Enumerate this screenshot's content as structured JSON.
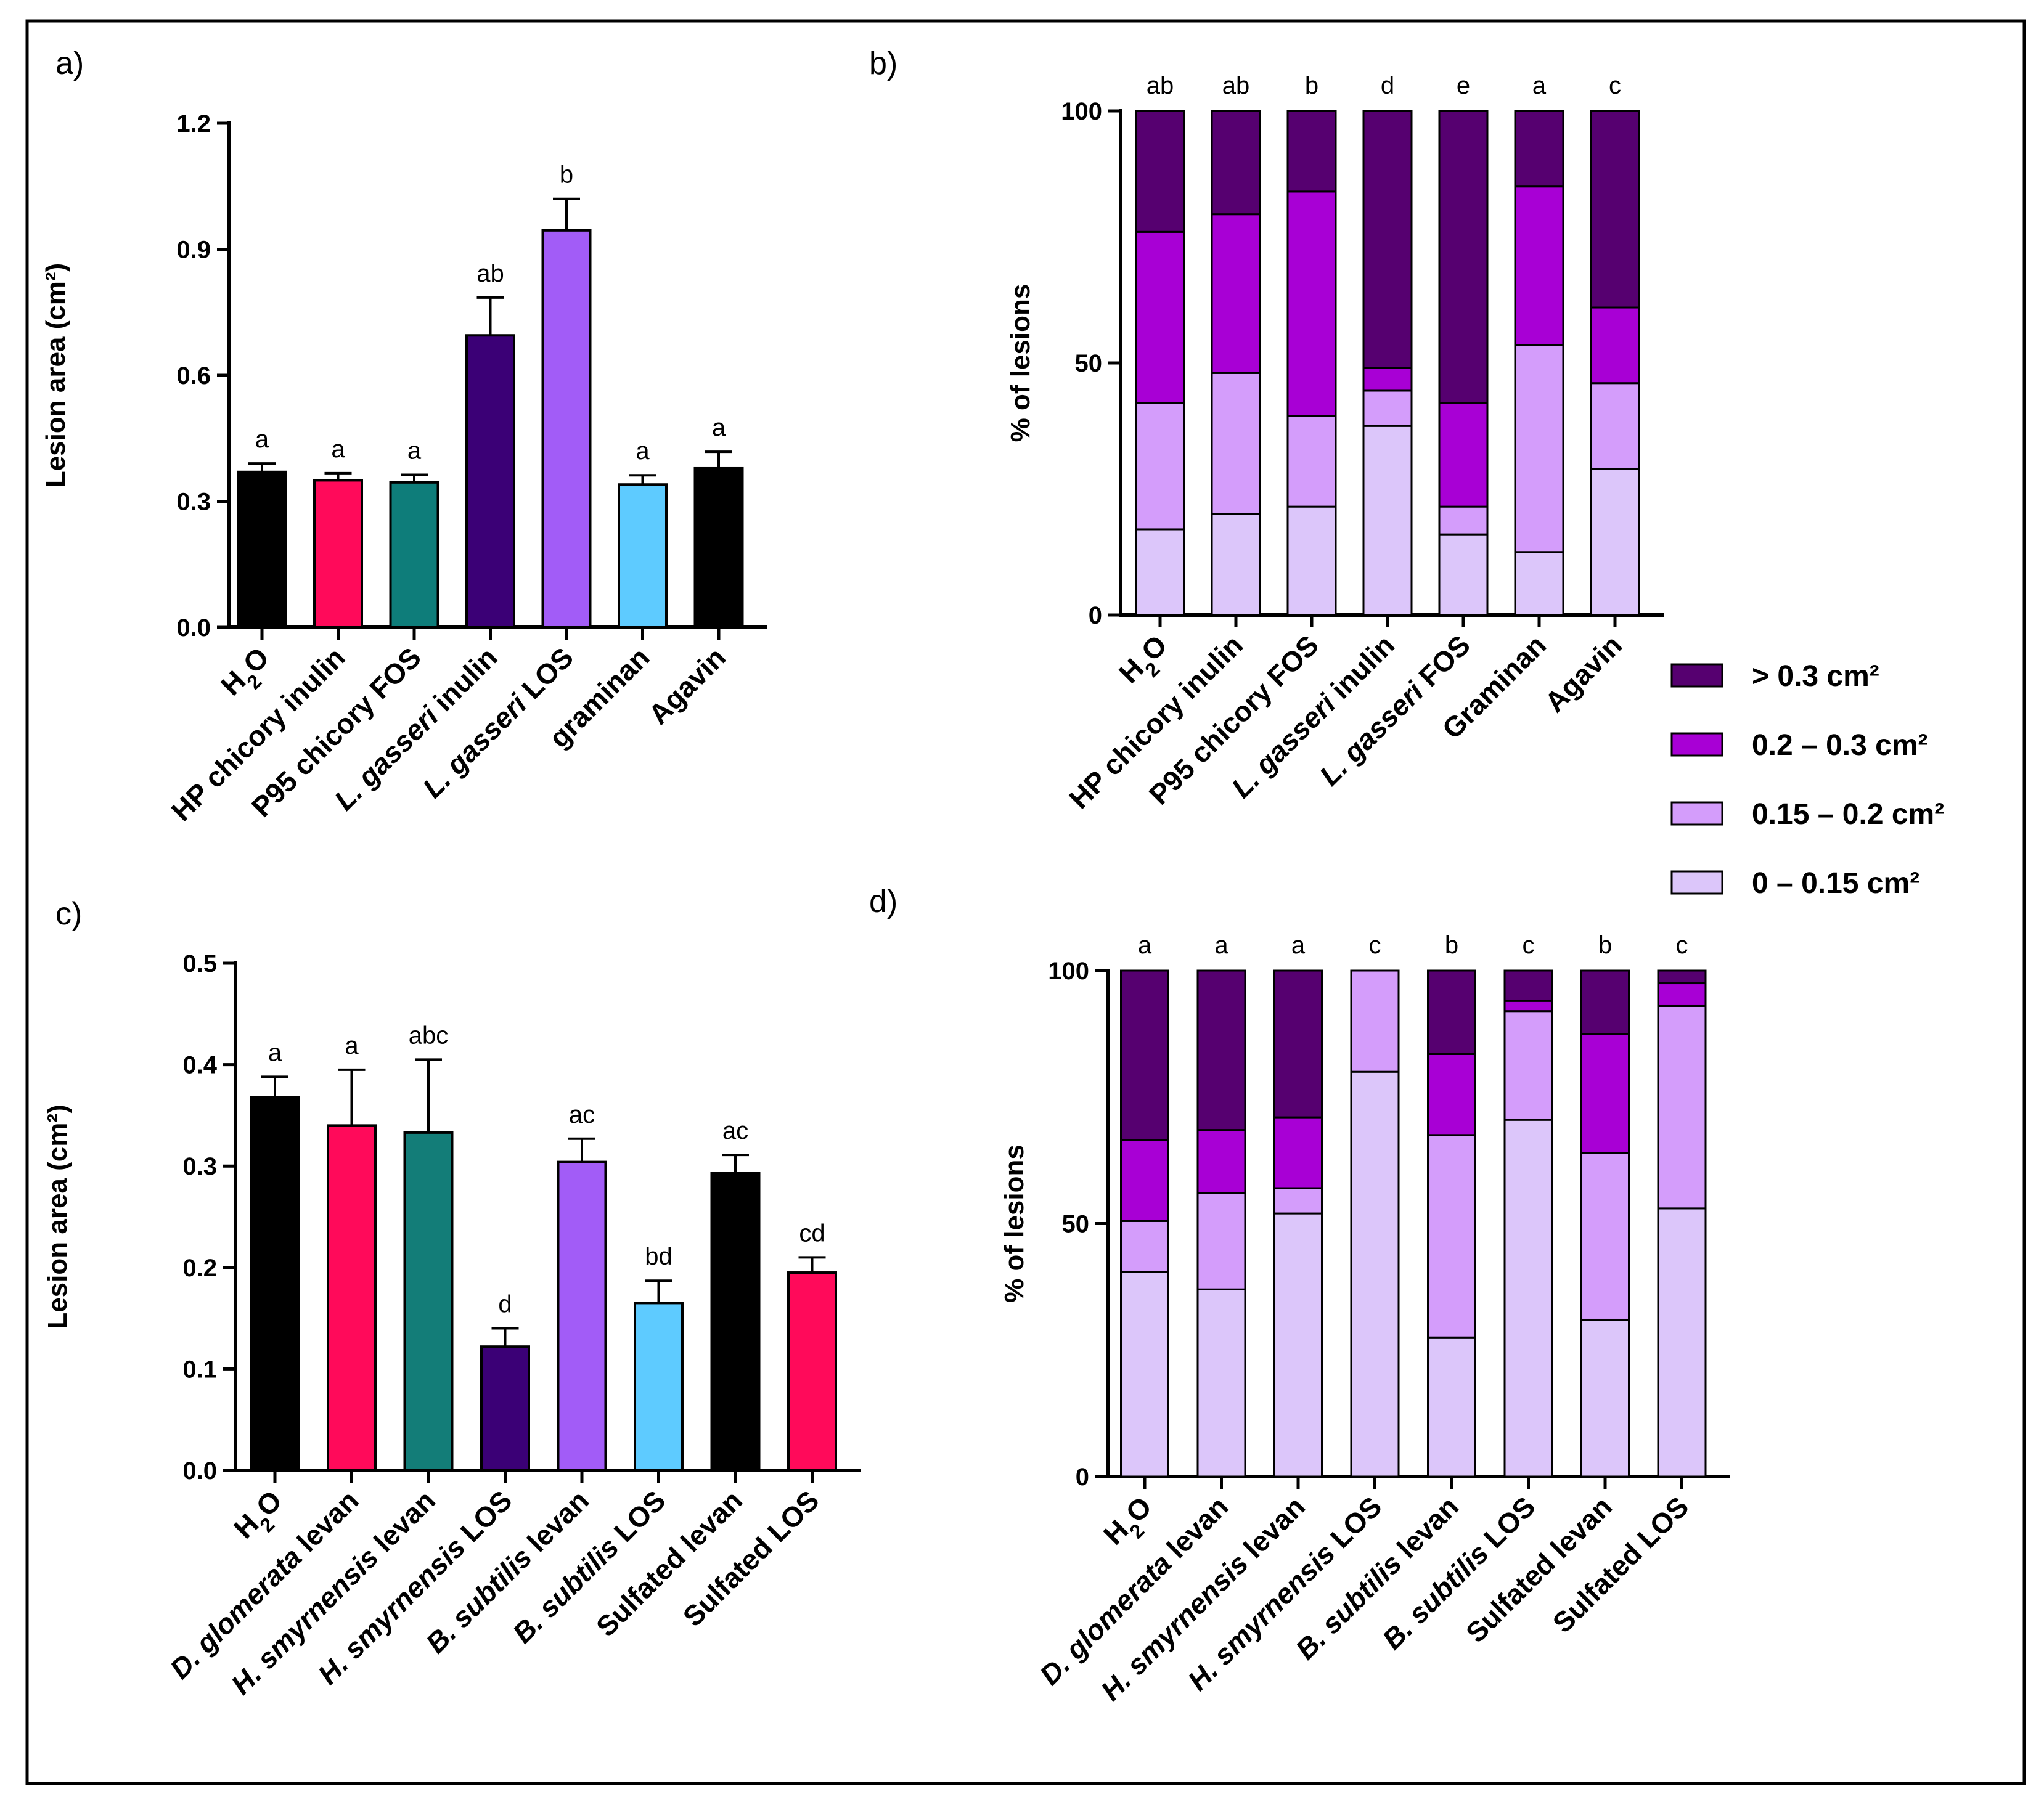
{
  "chart_data": [
    {
      "id": "a",
      "panel_label": "a)",
      "type": "bar",
      "ylabel": "Lesion area (cm²)",
      "ylim": [
        0,
        1.2
      ],
      "yticks": [
        "0.0",
        "0.3",
        "0.6",
        "0.9",
        "1.2"
      ],
      "categories": [
        {
          "parts": [
            {
              "t": "H"
            },
            {
              "t": "2",
              "sub": true
            },
            {
              "t": "O"
            }
          ]
        },
        {
          "parts": [
            {
              "t": "HP chicory inulin"
            }
          ]
        },
        {
          "parts": [
            {
              "t": "P95 chicory FOS"
            }
          ]
        },
        {
          "parts": [
            {
              "t": "L. gasseri",
              "i": true
            },
            {
              "t": " inulin"
            }
          ]
        },
        {
          "parts": [
            {
              "t": "L. gasseri",
              "i": true
            },
            {
              "t": " LOS"
            }
          ]
        },
        {
          "parts": [
            {
              "t": "graminan"
            }
          ]
        },
        {
          "parts": [
            {
              "t": "Agavin"
            }
          ]
        }
      ],
      "values": [
        0.37,
        0.35,
        0.345,
        0.695,
        0.945,
        0.34,
        0.38
      ],
      "errors": [
        0.02,
        0.017,
        0.018,
        0.09,
        0.075,
        0.022,
        0.038
      ],
      "colors": [
        "#000000",
        "#ff0a5a",
        "#0e7d7a",
        "#3b0076",
        "#a25cf7",
        "#5ecbff",
        "#000000"
      ],
      "letters": [
        "a",
        "a",
        "a",
        "ab",
        "b",
        "a",
        "a"
      ]
    },
    {
      "id": "b",
      "panel_label": "b)",
      "type": "stacked_bar",
      "ylabel": "% of lesions",
      "ylim": [
        0,
        100
      ],
      "yticks": [
        "0",
        "50",
        "100"
      ],
      "categories": [
        {
          "parts": [
            {
              "t": "H"
            },
            {
              "t": "2",
              "sub": true
            },
            {
              "t": "O"
            }
          ]
        },
        {
          "parts": [
            {
              "t": "HP chicory inulin"
            }
          ]
        },
        {
          "parts": [
            {
              "t": "P95 chicory FOS"
            }
          ]
        },
        {
          "parts": [
            {
              "t": "L. gasseri",
              "i": true
            },
            {
              "t": " inulin"
            }
          ]
        },
        {
          "parts": [
            {
              "t": "L. gasseri",
              "i": true
            },
            {
              "t": " FOS"
            }
          ]
        },
        {
          "parts": [
            {
              "t": "Graminan"
            }
          ]
        },
        {
          "parts": [
            {
              "t": "Agavin"
            }
          ]
        }
      ],
      "series": [
        {
          "name": "0 – 0.15 cm²",
          "color": "#dcc6fa",
          "values": [
            17,
            20,
            21.5,
            37.5,
            16,
            12.5,
            29
          ]
        },
        {
          "name": "0.15 – 0.2 cm²",
          "color": "#d49dfb",
          "values": [
            25,
            28,
            18,
            7,
            5.5,
            41,
            17
          ]
        },
        {
          "name": "0.2 – 0.3 cm²",
          "color": "#a800d5",
          "values": [
            34,
            31.5,
            44.5,
            4.5,
            20.5,
            31.5,
            15
          ]
        },
        {
          "name": "> 0.3 cm²",
          "color": "#560070",
          "values": [
            24,
            20.5,
            16,
            51,
            58,
            15,
            39
          ]
        }
      ],
      "letters": [
        "ab",
        "ab",
        "b",
        "d",
        "e",
        "a",
        "c"
      ]
    },
    {
      "id": "c",
      "panel_label": "c)",
      "type": "bar",
      "ylabel": "Lesion area (cm²)",
      "ylim": [
        0,
        0.5
      ],
      "yticks": [
        "0.0",
        "0.1",
        "0.2",
        "0.3",
        "0.4",
        "0.5"
      ],
      "categories": [
        {
          "parts": [
            {
              "t": "H"
            },
            {
              "t": "2",
              "sub": true
            },
            {
              "t": "O"
            }
          ]
        },
        {
          "parts": [
            {
              "t": "D. glomerata",
              "i": true
            },
            {
              "t": " levan"
            }
          ]
        },
        {
          "parts": [
            {
              "t": "H. smyrnensis",
              "i": true
            },
            {
              "t": " levan"
            }
          ]
        },
        {
          "parts": [
            {
              "t": "H. smyrnensis",
              "i": true
            },
            {
              "t": " LOS"
            }
          ]
        },
        {
          "parts": [
            {
              "t": "B. subtilis",
              "i": true
            },
            {
              "t": " levan"
            }
          ]
        },
        {
          "parts": [
            {
              "t": "B. subtilis",
              "i": true
            },
            {
              "t": " LOS"
            }
          ]
        },
        {
          "parts": [
            {
              "t": "Sulfated levan"
            }
          ]
        },
        {
          "parts": [
            {
              "t": "Sulfated LOS"
            }
          ]
        }
      ],
      "values": [
        0.368,
        0.34,
        0.333,
        0.122,
        0.304,
        0.165,
        0.293,
        0.195
      ],
      "errors": [
        0.02,
        0.055,
        0.072,
        0.018,
        0.023,
        0.022,
        0.018,
        0.015
      ],
      "colors": [
        "#000000",
        "#ff0a5a",
        "#137d78",
        "#3b0076",
        "#a25cf7",
        "#5ecbff",
        "#000000",
        "#ff0a5a"
      ],
      "letters": [
        "a",
        "a",
        "abc",
        "d",
        "ac",
        "bd",
        "ac",
        "cd"
      ]
    },
    {
      "id": "d",
      "panel_label": "d)",
      "type": "stacked_bar",
      "ylabel": "% of lesions",
      "ylim": [
        0,
        100
      ],
      "yticks": [
        "0",
        "50",
        "100"
      ],
      "categories": [
        {
          "parts": [
            {
              "t": "H"
            },
            {
              "t": "2",
              "sub": true
            },
            {
              "t": "O"
            }
          ]
        },
        {
          "parts": [
            {
              "t": "D. glomerata",
              "i": true
            },
            {
              "t": " levan"
            }
          ]
        },
        {
          "parts": [
            {
              "t": "H. smyrnensis",
              "i": true
            },
            {
              "t": " levan"
            }
          ]
        },
        {
          "parts": [
            {
              "t": "H. smyrnensis",
              "i": true
            },
            {
              "t": " LOS"
            }
          ]
        },
        {
          "parts": [
            {
              "t": "B. subtilis",
              "i": true
            },
            {
              "t": " levan"
            }
          ]
        },
        {
          "parts": [
            {
              "t": "B. subtilis",
              "i": true
            },
            {
              "t": " LOS"
            }
          ]
        },
        {
          "parts": [
            {
              "t": "Sulfated levan"
            }
          ]
        },
        {
          "parts": [
            {
              "t": "Sulfated LOS"
            }
          ]
        }
      ],
      "series": [
        {
          "name": "0 – 0.15 cm²",
          "color": "#dcc6fa",
          "values": [
            40.5,
            37,
            52,
            80,
            27.5,
            70.5,
            31,
            53
          ]
        },
        {
          "name": "0.15 – 0.2 cm²",
          "color": "#d49dfb",
          "values": [
            10,
            19,
            5,
            20,
            40,
            21.5,
            33,
            40
          ]
        },
        {
          "name": "0.2 – 0.3 cm²",
          "color": "#a800d5",
          "values": [
            16,
            12.5,
            14,
            0,
            16,
            2,
            23.5,
            4.5
          ]
        },
        {
          "name": "> 0.3 cm²",
          "color": "#560070",
          "values": [
            33.5,
            31.5,
            29,
            0,
            16.5,
            6,
            12.5,
            2.5
          ]
        }
      ],
      "letters": [
        "a",
        "a",
        "a",
        "c",
        "b",
        "c",
        "b",
        "c"
      ]
    }
  ],
  "legend": [
    {
      "label": "> 0.3 cm²",
      "color": "#560070"
    },
    {
      "label": "0.2 – 0.3 cm²",
      "color": "#a800d5"
    },
    {
      "label": "0.15 – 0.2 cm²",
      "color": "#d49dfb"
    },
    {
      "label": "0 – 0.15 cm²",
      "color": "#dcc6fa"
    }
  ]
}
